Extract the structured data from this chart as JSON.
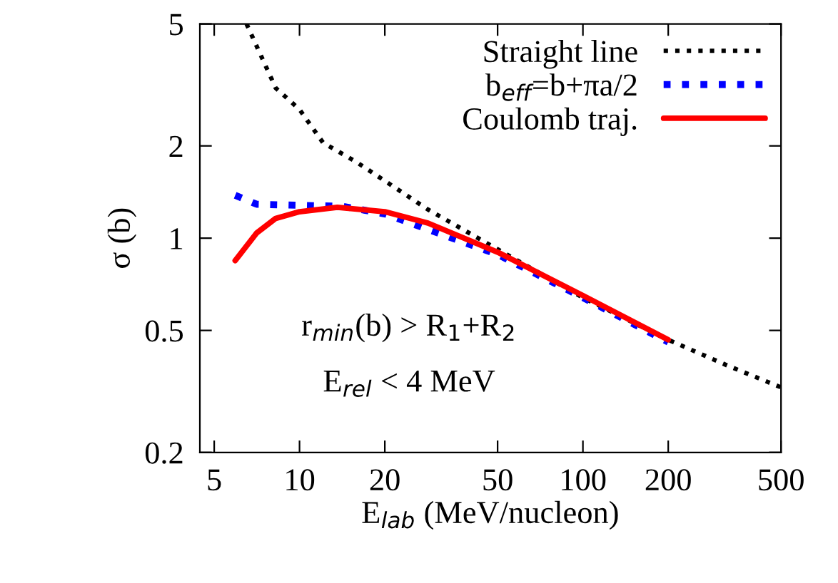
{
  "chart_data": {
    "type": "line",
    "xlabel": "E$_{lab}$ (MeV/nucleon)",
    "ylabel": "σ (b)",
    "log": "xy",
    "xlim": [
      4.45,
      500
    ],
    "ylim": [
      0.2,
      5
    ],
    "xticks": [
      5,
      10,
      20,
      50,
      100,
      200,
      500
    ],
    "yticks": [
      0.2,
      0.5,
      1,
      2,
      5
    ],
    "grid": false,
    "legend": "top right",
    "annotations": [
      "r$_{min}$(b) > R$_{1}$+R$_{2}$",
      "E$_{rel}$ < 4 MeV"
    ],
    "series": [
      {
        "name": "Straight line",
        "color": "#000000",
        "line_style": "dotted",
        "x": [
          6.5,
          8.24,
          10,
          12.1,
          15.9,
          28.4,
          50,
          100,
          200,
          326,
          500
        ],
        "values": [
          5,
          3.09,
          2.63,
          2.05,
          1.77,
          1.24,
          0.92,
          0.64,
          0.466,
          0.383,
          0.326
        ]
      },
      {
        "name": "b$_{eff}$=b+πa/2",
        "color": "#0000ff",
        "line_style": "dotted",
        "x": [
          5.93,
          7.06,
          10,
          14.2,
          20,
          50,
          100,
          200
        ],
        "values": [
          1.38,
          1.29,
          1.28,
          1.27,
          1.2,
          0.885,
          0.64,
          0.458
        ]
      },
      {
        "name": "Coulomb traj.",
        "color": "#ff0000",
        "line_style": "solid",
        "x": [
          5.93,
          7.06,
          8.24,
          10,
          13.6,
          20,
          28.4,
          50,
          100,
          200
        ],
        "values": [
          0.845,
          1.04,
          1.16,
          1.22,
          1.26,
          1.22,
          1.12,
          0.9,
          0.65,
          0.466
        ]
      }
    ]
  }
}
